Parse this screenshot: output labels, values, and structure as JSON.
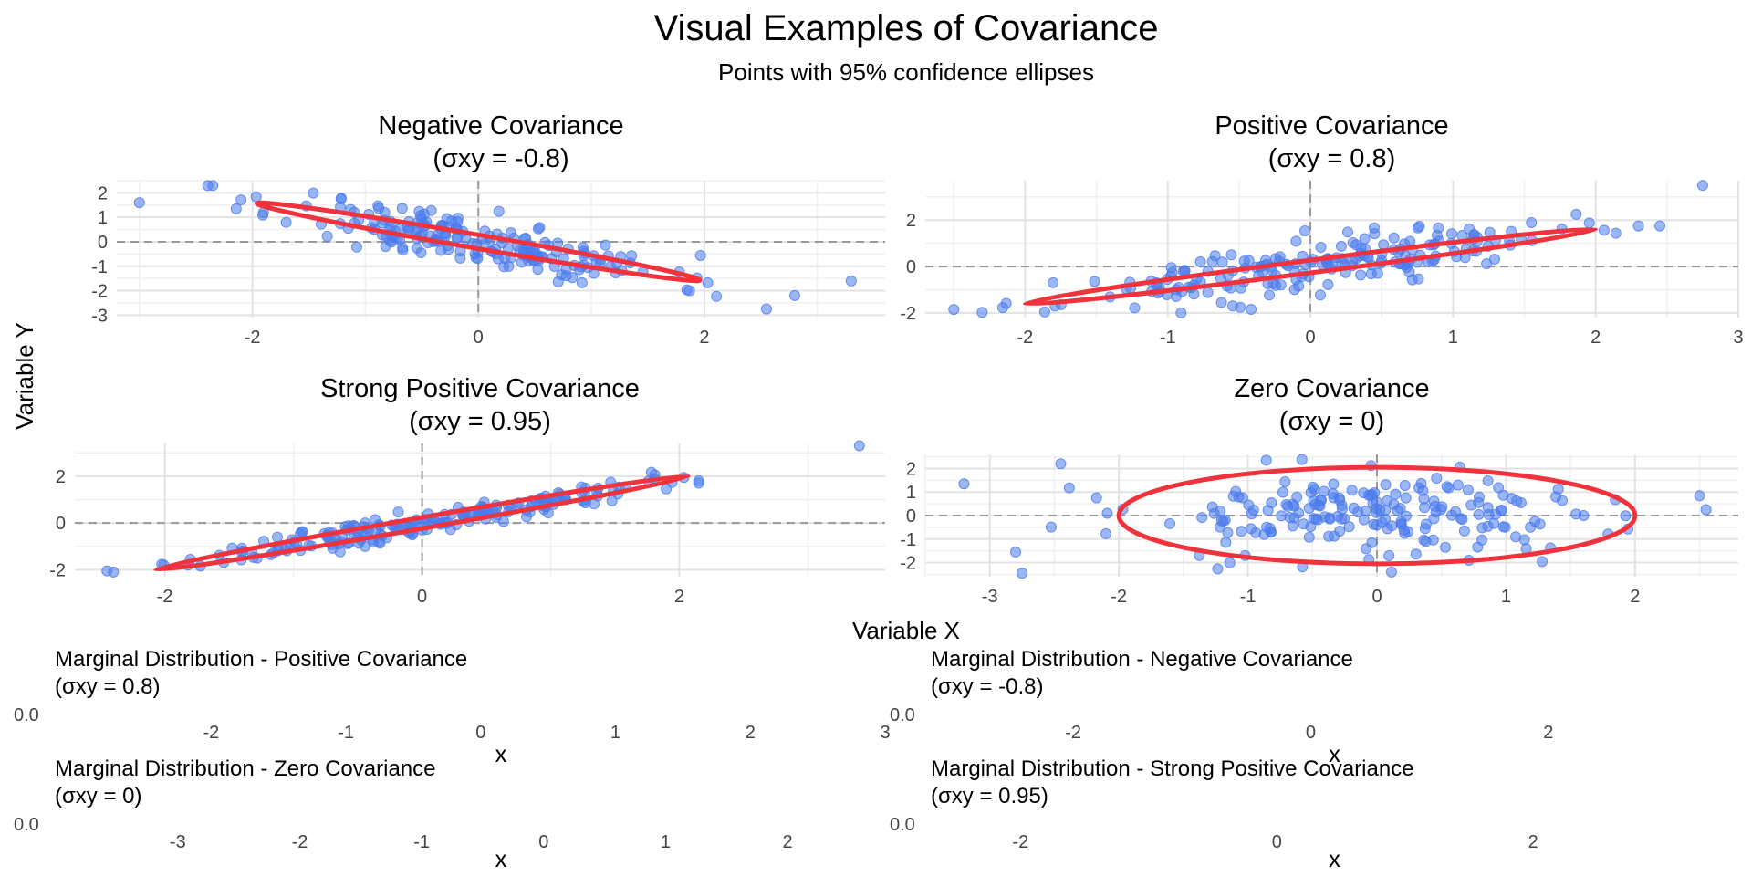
{
  "title": "Visual Examples of Covariance",
  "subtitle": "Points with 95% confidence ellipses",
  "shared_xlabel": "Variable X",
  "shared_ylabel": "Variable Y",
  "colors": {
    "points": "#4b7bec",
    "ellipse": "#f0323c",
    "zero_line": "#999999",
    "grid": "#e3e3e3"
  },
  "chart_data": [
    {
      "type": "scatter",
      "title_line1": "Negative Covariance",
      "title_line2": "(σxy = -0.8)",
      "cov": -0.8,
      "seed": 11,
      "n": 200,
      "xlim": [
        -3.2,
        3.6
      ],
      "ylim": [
        -3.1,
        2.5
      ],
      "xticks": [
        -2,
        0,
        2
      ],
      "yticks": [
        -3,
        -2,
        -1,
        0,
        1,
        2
      ],
      "ellipse": {
        "cx": 0.0,
        "cy": 0.0,
        "x_end": 1.96,
        "y_end": -1.57,
        "half_width": 0.28
      },
      "outliers": [
        [
          -3.0,
          1.6
        ],
        [
          -2.35,
          2.3
        ],
        [
          2.55,
          -2.75
        ],
        [
          2.8,
          -2.2
        ],
        [
          3.3,
          -1.6
        ]
      ]
    },
    {
      "type": "scatter",
      "title_line1": "Positive Covariance",
      "title_line2": "(σxy = 0.8)",
      "cov": 0.8,
      "seed": 23,
      "n": 200,
      "xlim": [
        -2.7,
        3.0
      ],
      "ylim": [
        -2.2,
        3.7
      ],
      "xticks": [
        -2,
        -1,
        0,
        1,
        2,
        3
      ],
      "yticks": [
        -2,
        0,
        2
      ],
      "ellipse": {
        "cx": 0.0,
        "cy": 0.0,
        "x_end": 2.0,
        "y_end": 1.6,
        "half_width": 0.27
      },
      "outliers": [
        [
          -2.5,
          -1.85
        ],
        [
          2.75,
          3.5
        ],
        [
          2.3,
          1.75
        ],
        [
          2.45,
          1.75
        ]
      ]
    },
    {
      "type": "scatter",
      "title_line1": "Strong Positive Covariance",
      "title_line2": "(σxy = 0.95)",
      "cov": 0.95,
      "seed": 37,
      "n": 200,
      "xlim": [
        -2.7,
        3.6
      ],
      "ylim": [
        -2.3,
        3.4
      ],
      "xticks": [
        -2,
        0,
        2
      ],
      "yticks": [
        -2,
        0,
        2
      ],
      "ellipse": {
        "cx": 0.0,
        "cy": 0.0,
        "x_end": 2.07,
        "y_end": 2.0,
        "half_width": 0.13
      },
      "outliers": [
        [
          -2.45,
          -2.05
        ],
        [
          3.4,
          3.3
        ],
        [
          2.15,
          1.8
        ],
        [
          2.15,
          1.7
        ]
      ]
    },
    {
      "type": "scatter",
      "title_line1": "Zero Covariance",
      "title_line2": "(σxy = 0)",
      "cov": 0.0,
      "seed": 53,
      "n": 200,
      "xlim": [
        -3.5,
        2.8
      ],
      "ylim": [
        -2.6,
        2.6
      ],
      "xticks": [
        -3,
        -2,
        -1,
        0,
        1,
        2
      ],
      "yticks": [
        -2,
        -1,
        0,
        1,
        2
      ],
      "ellipse": {
        "cx": 0.0,
        "cy": 0.0,
        "x_end": 2.0,
        "y_end": 0.0,
        "half_width": 2.05
      },
      "outliers": [
        [
          -3.2,
          1.35
        ],
        [
          -2.8,
          -1.55
        ],
        [
          -2.75,
          -2.45
        ],
        [
          2.55,
          0.25
        ],
        [
          -2.45,
          2.2
        ]
      ]
    }
  ],
  "marginals": [
    {
      "title_line1": "Marginal Distribution - Positive Covariance",
      "title_line2": "(σxy = 0.8)",
      "xlim": [
        -2.7,
        3.0
      ],
      "xticks": [
        -2,
        -1,
        0,
        1,
        2,
        3
      ],
      "xlabel": "x",
      "y_ticks_text": "0.0"
    },
    {
      "title_line1": "Marginal Distribution - Negative Covariance",
      "title_line2": "(σxy = -0.8)",
      "xlim": [
        -3.2,
        3.6
      ],
      "xticks": [
        -2,
        0,
        2
      ],
      "xlabel": "x",
      "y_ticks_text": "0.0"
    },
    {
      "title_line1": "Marginal Distribution - Zero Covariance",
      "title_line2": "(σxy = 0)",
      "xlim": [
        -3.5,
        2.8
      ],
      "xticks": [
        -3,
        -2,
        -1,
        0,
        1,
        2
      ],
      "xlabel": "x",
      "y_ticks_text": "0.0"
    },
    {
      "title_line1": "Marginal Distribution - Strong Positive Covariance",
      "title_line2": "(σxy = 0.95)",
      "xlim": [
        -2.7,
        3.6
      ],
      "xticks": [
        -2,
        0,
        2
      ],
      "xlabel": "x",
      "y_ticks_text": "0.0"
    }
  ]
}
